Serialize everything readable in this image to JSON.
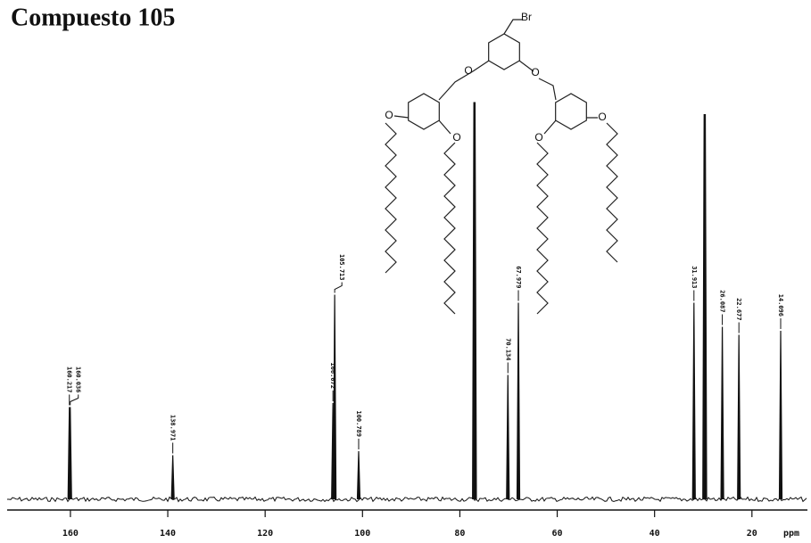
{
  "chart_data": {
    "type": "spectrum",
    "title": "Compuesto 105",
    "xlabel": "ppm",
    "xlim": [
      173,
      8.6
    ],
    "xticks": [
      160,
      140,
      120,
      100,
      80,
      60,
      40,
      20
    ],
    "ylim": [
      0,
      100
    ],
    "color": "#111111",
    "peaks": {
      "x": [
        160.217,
        160.036,
        138.971,
        106.072,
        105.713,
        100.789,
        77.0,
        70.134,
        67.979,
        31.913,
        29.7,
        26.087,
        22.677,
        14.096
      ],
      "values": [
        23,
        23,
        11,
        24,
        51,
        12,
        99,
        31,
        49,
        49,
        96,
        43,
        41,
        42
      ],
      "labeled": [
        true,
        true,
        true,
        true,
        true,
        true,
        false,
        true,
        true,
        true,
        false,
        true,
        true,
        true
      ]
    },
    "structure": {
      "atoms": [
        "Br",
        "O",
        "O",
        "O",
        "O",
        "O",
        "O"
      ]
    }
  }
}
